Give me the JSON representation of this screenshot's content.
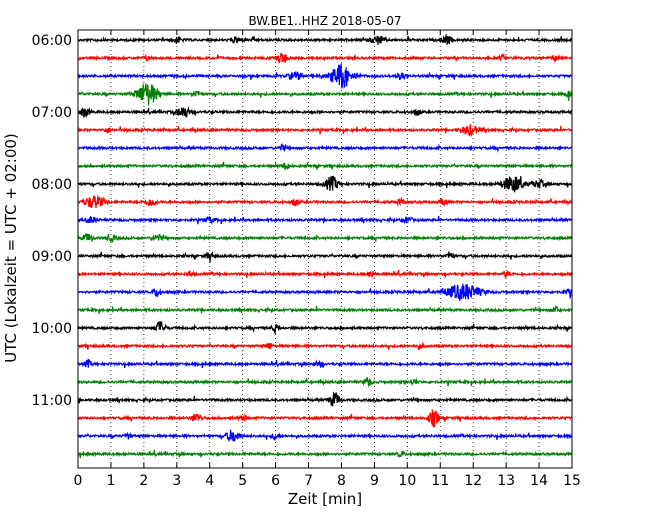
{
  "chart_data": {
    "type": "line",
    "title": "BW.BE1..HHZ 2018-05-07",
    "xlabel": "Zeit  [min]",
    "ylabel": "UTC (Lokalzeit = UTC + 02:00)",
    "xlim": [
      0,
      15
    ],
    "x_ticks": [
      "0",
      "1",
      "2",
      "3",
      "4",
      "5",
      "6",
      "7",
      "8",
      "9",
      "10",
      "11",
      "12",
      "13",
      "14",
      "15"
    ],
    "y_tick_labels": [
      "06:00",
      "07:00",
      "08:00",
      "09:00",
      "10:00",
      "11:00"
    ],
    "grid": "vertical dotted",
    "series_colors": [
      "#000000",
      "#ff0000",
      "#0000ff",
      "#008000"
    ],
    "series": [
      {
        "start": "06:00",
        "events": [
          [
            3.0,
            0.35,
            0.15
          ],
          [
            4.8,
            0.3,
            0.15
          ],
          [
            9.1,
            0.45,
            0.2
          ],
          [
            11.2,
            0.45,
            0.15
          ]
        ]
      },
      {
        "start": "06:15",
        "events": [
          [
            2.1,
            0.25,
            0.1
          ],
          [
            6.2,
            0.6,
            0.15
          ],
          [
            12.9,
            0.3,
            0.1
          ],
          [
            14.5,
            0.4,
            0.1
          ]
        ]
      },
      {
        "start": "06:30",
        "events": [
          [
            6.6,
            0.45,
            0.2
          ],
          [
            8.0,
            1.4,
            0.3
          ],
          [
            9.8,
            0.35,
            0.15
          ]
        ]
      },
      {
        "start": "06:45",
        "events": [
          [
            2.1,
            1.3,
            0.3
          ],
          [
            3.6,
            0.35,
            0.1
          ],
          [
            14.9,
            0.35,
            0.1
          ]
        ]
      },
      {
        "start": "07:00",
        "events": [
          [
            0.2,
            0.5,
            0.15
          ],
          [
            3.2,
            0.6,
            0.2
          ],
          [
            10.3,
            0.35,
            0.1
          ]
        ]
      },
      {
        "start": "07:15",
        "events": [
          [
            0.9,
            0.3,
            0.1
          ],
          [
            11.9,
            0.55,
            0.25
          ]
        ]
      },
      {
        "start": "07:30",
        "events": [
          [
            6.2,
            0.3,
            0.1
          ]
        ]
      },
      {
        "start": "07:45",
        "events": [
          [
            6.3,
            0.35,
            0.1
          ]
        ]
      },
      {
        "start": "08:00",
        "events": [
          [
            7.7,
            0.8,
            0.2
          ],
          [
            13.2,
            0.9,
            0.3
          ],
          [
            14.0,
            0.4,
            0.15
          ]
        ]
      },
      {
        "start": "08:15",
        "events": [
          [
            0.5,
            0.7,
            0.3
          ],
          [
            2.2,
            0.4,
            0.15
          ],
          [
            6.6,
            0.4,
            0.1
          ],
          [
            9.8,
            0.35,
            0.1
          ],
          [
            11.1,
            0.4,
            0.1
          ]
        ]
      },
      {
        "start": "08:30",
        "events": [
          [
            0.4,
            0.35,
            0.15
          ],
          [
            4.0,
            0.3,
            0.15
          ],
          [
            10.0,
            0.3,
            0.15
          ]
        ]
      },
      {
        "start": "08:45",
        "events": [
          [
            0.3,
            0.45,
            0.15
          ],
          [
            1.0,
            0.3,
            0.15
          ],
          [
            2.4,
            0.35,
            0.15
          ]
        ]
      },
      {
        "start": "09:00",
        "events": [
          [
            4.0,
            0.4,
            0.1
          ],
          [
            11.3,
            0.45,
            0.1
          ]
        ]
      },
      {
        "start": "09:15",
        "events": [
          [
            3.4,
            0.3,
            0.1
          ],
          [
            8.9,
            0.35,
            0.1
          ],
          [
            13.0,
            0.3,
            0.1
          ]
        ]
      },
      {
        "start": "09:30",
        "events": [
          [
            2.4,
            0.45,
            0.1
          ],
          [
            11.7,
            0.9,
            0.5
          ],
          [
            14.9,
            0.3,
            0.1
          ]
        ]
      },
      {
        "start": "09:45",
        "events": [
          [
            14.5,
            0.35,
            0.1
          ]
        ]
      },
      {
        "start": "10:00",
        "events": [
          [
            2.5,
            0.7,
            0.15
          ],
          [
            6.0,
            0.45,
            0.1
          ]
        ]
      },
      {
        "start": "10:15",
        "events": [
          [
            5.8,
            0.35,
            0.1
          ],
          [
            10.4,
            0.3,
            0.1
          ]
        ]
      },
      {
        "start": "10:30",
        "events": [
          [
            0.3,
            0.4,
            0.1
          ],
          [
            7.3,
            0.3,
            0.1
          ]
        ]
      },
      {
        "start": "10:45",
        "events": [
          [
            8.8,
            0.6,
            0.1
          ],
          [
            10.2,
            0.3,
            0.1
          ]
        ]
      },
      {
        "start": "11:00",
        "events": [
          [
            7.8,
            0.8,
            0.15
          ]
        ]
      },
      {
        "start": "11:15",
        "events": [
          [
            3.6,
            0.5,
            0.15
          ],
          [
            5.0,
            0.35,
            0.1
          ],
          [
            10.8,
            0.9,
            0.15
          ]
        ]
      },
      {
        "start": "11:30",
        "events": [
          [
            1.5,
            0.3,
            0.1
          ],
          [
            4.7,
            0.65,
            0.2
          ],
          [
            6.0,
            0.45,
            0.1
          ]
        ]
      },
      {
        "start": "11:45",
        "events": [
          [
            9.8,
            0.3,
            0.1
          ]
        ]
      }
    ]
  }
}
